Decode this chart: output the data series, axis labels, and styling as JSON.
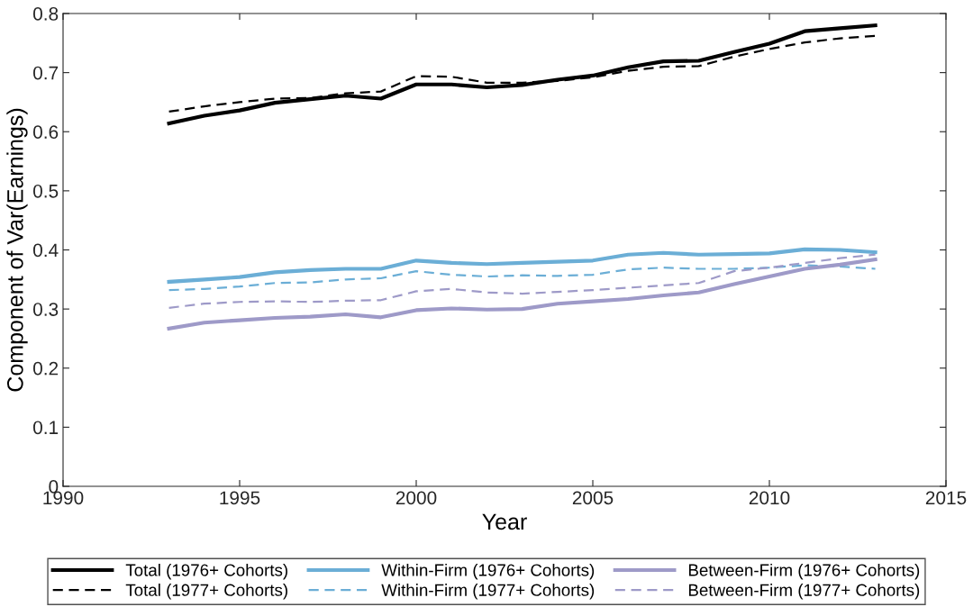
{
  "chart_data": {
    "type": "line",
    "xlabel": "Year",
    "ylabel": "Component of Var(Earnings)",
    "x": [
      1993,
      1994,
      1995,
      1996,
      1997,
      1998,
      1999,
      2000,
      2001,
      2002,
      2003,
      2004,
      2005,
      2006,
      2007,
      2008,
      2009,
      2010,
      2011,
      2012,
      2013
    ],
    "xlim": [
      1990,
      2015
    ],
    "xticks": [
      1990,
      1995,
      2000,
      2005,
      2010,
      2015
    ],
    "ylim": [
      0,
      0.8
    ],
    "yticks": [
      0,
      0.1,
      0.2,
      0.3,
      0.4,
      0.5,
      0.6,
      0.7,
      0.8
    ],
    "grid": false,
    "legend": "bottom",
    "series": [
      {
        "name": "Total (1976+ Cohorts)",
        "color": "#000000",
        "line_style": "solid",
        "values": [
          0.614,
          0.627,
          0.636,
          0.649,
          0.655,
          0.661,
          0.656,
          0.68,
          0.68,
          0.675,
          0.679,
          0.688,
          0.695,
          0.709,
          0.719,
          0.72,
          0.735,
          0.749,
          0.77,
          0.775,
          0.78
        ]
      },
      {
        "name": "Total (1977+ Cohorts)",
        "color": "#000000",
        "line_style": "dashed",
        "values": [
          0.634,
          0.643,
          0.65,
          0.656,
          0.657,
          0.665,
          0.668,
          0.694,
          0.693,
          0.683,
          0.683,
          0.686,
          0.692,
          0.703,
          0.71,
          0.711,
          0.727,
          0.74,
          0.751,
          0.758,
          0.762
        ]
      },
      {
        "name": "Within-Firm (1976+ Cohorts)",
        "color": "#6baed6",
        "line_style": "solid",
        "values": [
          0.346,
          0.35,
          0.354,
          0.362,
          0.366,
          0.368,
          0.368,
          0.382,
          0.378,
          0.376,
          0.378,
          0.38,
          0.382,
          0.392,
          0.395,
          0.392,
          0.393,
          0.394,
          0.401,
          0.4,
          0.396
        ]
      },
      {
        "name": "Within-Firm (1977+ Cohorts)",
        "color": "#6baed6",
        "line_style": "dashed",
        "values": [
          0.332,
          0.334,
          0.338,
          0.344,
          0.345,
          0.35,
          0.352,
          0.364,
          0.358,
          0.355,
          0.357,
          0.356,
          0.358,
          0.367,
          0.37,
          0.368,
          0.368,
          0.37,
          0.374,
          0.372,
          0.368
        ]
      },
      {
        "name": "Between-Firm (1976+ Cohorts)",
        "color": "#9e9ac8",
        "line_style": "solid",
        "values": [
          0.267,
          0.277,
          0.281,
          0.285,
          0.287,
          0.291,
          0.286,
          0.298,
          0.301,
          0.299,
          0.3,
          0.309,
          0.313,
          0.317,
          0.323,
          0.328,
          0.342,
          0.355,
          0.368,
          0.375,
          0.384
        ]
      },
      {
        "name": "Between-Firm (1977+ Cohorts)",
        "color": "#9e9ac8",
        "line_style": "dashed",
        "values": [
          0.302,
          0.309,
          0.312,
          0.313,
          0.312,
          0.314,
          0.315,
          0.33,
          0.334,
          0.328,
          0.326,
          0.329,
          0.332,
          0.336,
          0.34,
          0.344,
          0.364,
          0.37,
          0.378,
          0.386,
          0.392
        ]
      }
    ]
  }
}
